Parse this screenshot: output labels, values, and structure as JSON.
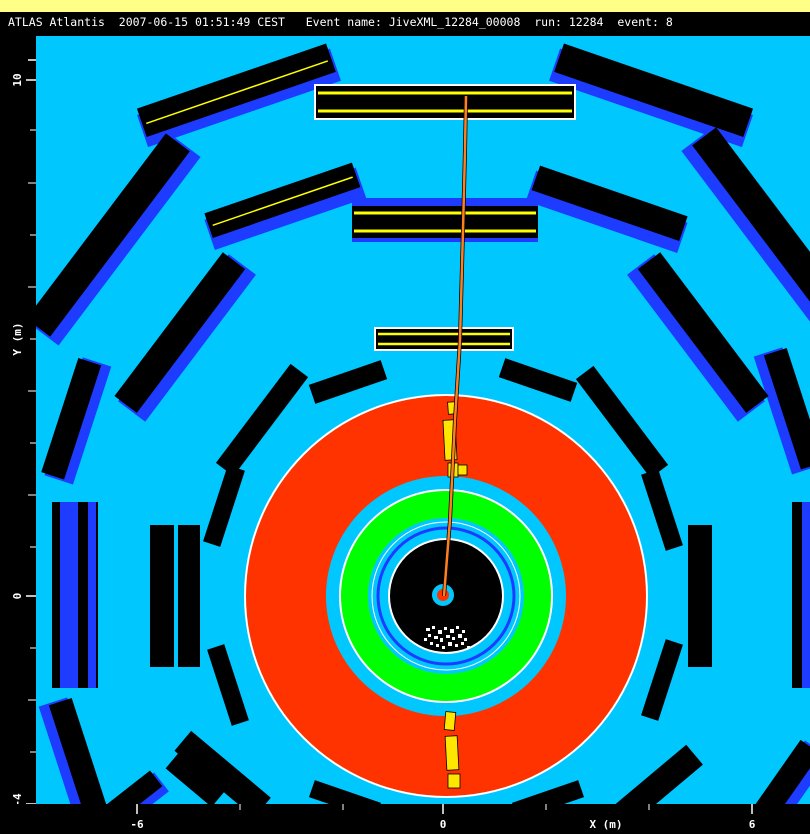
{
  "header": {
    "app": "ATLAS Atlantis",
    "timestamp": "2007-06-15 01:51:49 CEST",
    "event_name": "Event name: JiveXML_12284_00008",
    "run": "run: 12284",
    "event": "event: 8"
  },
  "axes": {
    "xlabel": "X (m)",
    "ylabel": "Y (m)",
    "x_ticks": [
      "-6",
      "0",
      "6"
    ],
    "y_ticks": [
      "10",
      "0",
      "-4"
    ]
  },
  "colors": {
    "background": "#00c8ff",
    "muon_chamber": "#000000",
    "muon_rpc": "#1e3cff",
    "hit_line": "#ffff00",
    "hadronic_calorimeter": "#ff3300",
    "em_calorimeter": "#00ff00",
    "solenoid": "#1e3cff",
    "inner_detector": "#000000",
    "track": "#ff7f1f",
    "calo_cell": "#ffe600",
    "pixel_hits": "#ffffff",
    "frame": "#000000",
    "header_background": "#ffff88"
  }
}
